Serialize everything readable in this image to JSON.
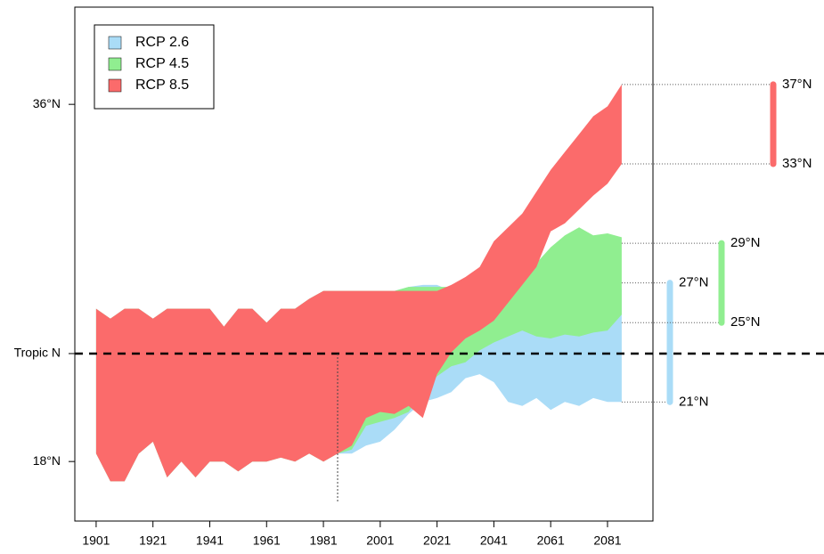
{
  "chart_data": {
    "type": "band",
    "x": [
      1901,
      1906,
      1911,
      1916,
      1921,
      1926,
      1931,
      1936,
      1941,
      1946,
      1951,
      1956,
      1961,
      1966,
      1971,
      1976,
      1981,
      1986,
      1991,
      1996,
      2001,
      2006,
      2011,
      2016,
      2021,
      2026,
      2031,
      2036,
      2041,
      2046,
      2051,
      2056,
      2061,
      2066,
      2071,
      2076,
      2081,
      2086
    ],
    "xlim": [
      1893.5,
      2097
    ],
    "xticks": [
      1901,
      1921,
      1941,
      1961,
      1981,
      2001,
      2021,
      2041,
      2061,
      2081
    ],
    "ylim": [
      15,
      40.9
    ],
    "yticks": [
      {
        "value": 18,
        "label": "18°N"
      },
      {
        "value": 23.44,
        "label": "Tropic N"
      },
      {
        "value": 36,
        "label": "36°N"
      }
    ],
    "vline_x": 1986,
    "series": [
      {
        "name": "RCP 2.6",
        "color": "#aadcf7",
        "upper": [
          25.7,
          25.2,
          25.7,
          25.7,
          25.2,
          25.7,
          25.7,
          25.7,
          25.7,
          24.8,
          25.7,
          25.7,
          25.0,
          25.7,
          25.7,
          26.2,
          26.6,
          26.6,
          26.6,
          26.6,
          26.6,
          26.6,
          26.8,
          26.9,
          26.9,
          26.6,
          26.6,
          24.8,
          25.0,
          25.2,
          25.0,
          25.4,
          25.8,
          25.6,
          26.0,
          26.2,
          26.4,
          26.7
        ],
        "lower": [
          18.4,
          17.0,
          17.0,
          18.4,
          19.0,
          17.2,
          18.0,
          17.2,
          18.0,
          18.0,
          17.5,
          18.0,
          18.0,
          18.2,
          18.0,
          18.4,
          18.0,
          18.4,
          18.4,
          18.8,
          19.0,
          19.6,
          20.4,
          21.0,
          21.2,
          21.5,
          22.2,
          22.4,
          22.0,
          21.0,
          20.8,
          21.2,
          20.6,
          21.0,
          20.8,
          21.2,
          21.0,
          21.0
        ],
        "range": [
          21,
          27
        ],
        "range_labels": [
          "21°N",
          "27°N"
        ]
      },
      {
        "name": "RCP 4.5",
        "color": "#90ee90",
        "upper": [
          25.7,
          25.2,
          25.7,
          25.7,
          25.2,
          25.7,
          25.7,
          25.7,
          25.7,
          24.8,
          25.7,
          25.7,
          25.0,
          25.7,
          25.7,
          26.2,
          26.6,
          26.6,
          26.6,
          26.6,
          26.6,
          26.6,
          26.8,
          26.8,
          26.8,
          26.8,
          26.8,
          26.6,
          26.6,
          27.0,
          27.3,
          28.0,
          28.8,
          29.4,
          29.8,
          29.4,
          29.5,
          29.3
        ],
        "lower": [
          18.4,
          17.0,
          17.0,
          18.4,
          19.0,
          17.2,
          18.0,
          17.2,
          18.0,
          18.0,
          17.5,
          18.0,
          18.0,
          18.2,
          18.0,
          18.4,
          18.0,
          18.4,
          18.6,
          19.8,
          20.0,
          20.2,
          20.5,
          21.5,
          22.3,
          22.8,
          23.0,
          23.6,
          24.0,
          24.3,
          24.6,
          24.3,
          24.2,
          24.4,
          24.3,
          24.5,
          24.6,
          25.4
        ],
        "range": [
          25,
          29
        ],
        "range_labels": [
          "25°N",
          "29°N"
        ]
      },
      {
        "name": "RCP 8.5",
        "color": "#fb6b6b",
        "upper": [
          25.7,
          25.2,
          25.7,
          25.7,
          25.2,
          25.7,
          25.7,
          25.7,
          25.7,
          24.8,
          25.7,
          25.7,
          25.0,
          25.7,
          25.7,
          26.2,
          26.6,
          26.6,
          26.6,
          26.6,
          26.6,
          26.6,
          26.6,
          26.6,
          26.6,
          26.9,
          27.3,
          27.8,
          29.1,
          29.8,
          30.5,
          31.6,
          32.7,
          33.6,
          34.5,
          35.4,
          35.9,
          37.0
        ],
        "lower": [
          18.4,
          17.0,
          17.0,
          18.4,
          19.0,
          17.2,
          18.0,
          17.2,
          18.0,
          18.0,
          17.5,
          18.0,
          18.0,
          18.2,
          18.0,
          18.4,
          18.0,
          18.4,
          18.8,
          20.2,
          20.5,
          20.4,
          20.8,
          20.2,
          22.4,
          23.5,
          24.2,
          24.6,
          25.1,
          26.0,
          26.9,
          27.8,
          29.6,
          30.0,
          30.7,
          31.4,
          32.0,
          33.0
        ],
        "range": [
          33,
          37
        ],
        "range_labels": [
          "33°N",
          "37°N"
        ]
      }
    ],
    "legend": "top-left"
  }
}
